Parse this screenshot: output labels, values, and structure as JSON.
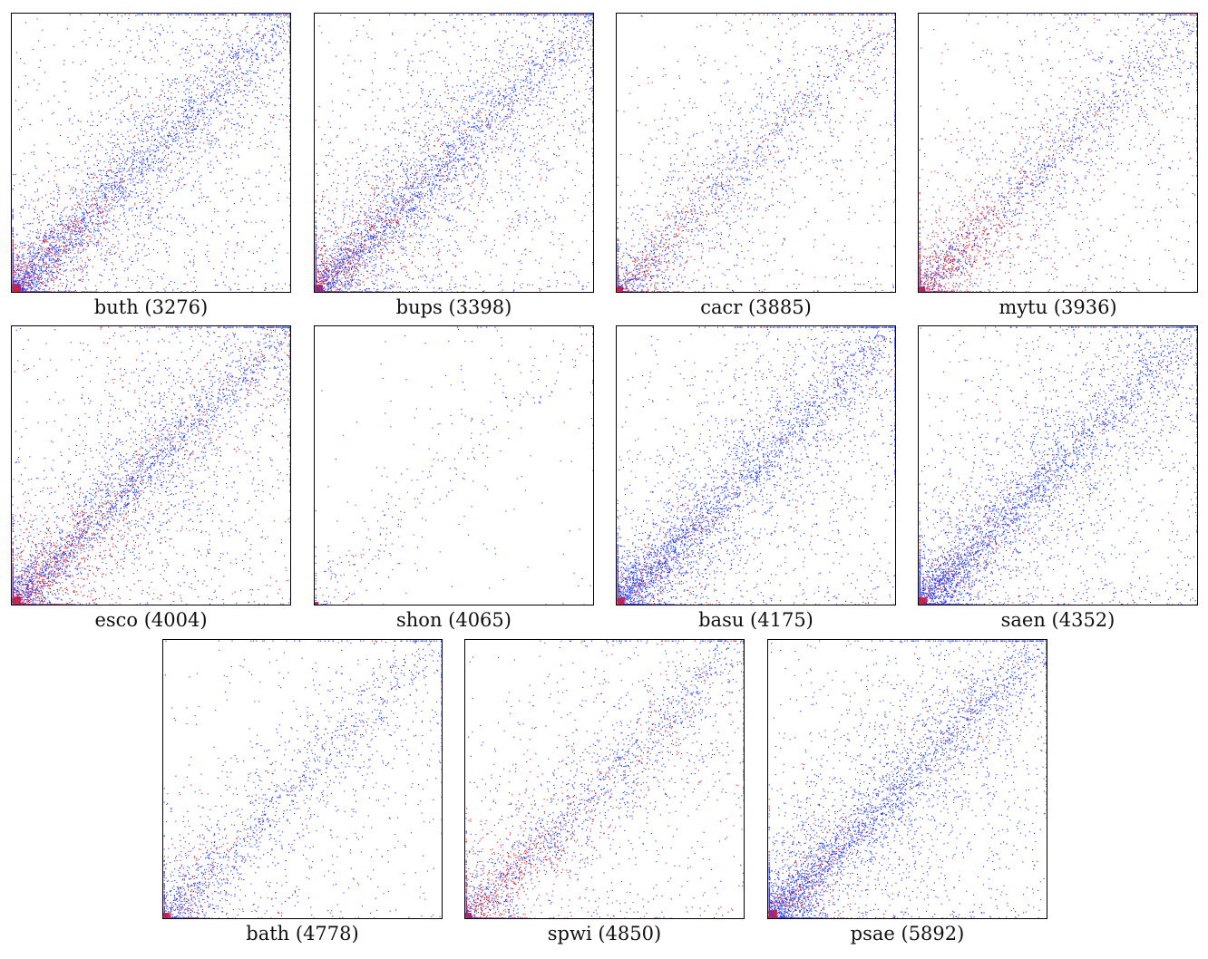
{
  "chart_data": [
    {
      "type": "scatter",
      "name": "buth",
      "count": 3276,
      "caption": "buth (3276)",
      "density": 1.0,
      "concentration": 0.55,
      "red_fraction": 0.22,
      "xlim": [
        0,
        3276
      ],
      "ylim": [
        0,
        3276
      ],
      "series": [
        {
          "name": "blue",
          "color": "#1f3cff"
        },
        {
          "name": "red",
          "color": "#e8202a"
        }
      ]
    },
    {
      "type": "scatter",
      "name": "bups",
      "count": 3398,
      "caption": "bups (3398)",
      "density": 1.0,
      "concentration": 0.5,
      "red_fraction": 0.22,
      "xlim": [
        0,
        3398
      ],
      "ylim": [
        0,
        3398
      ],
      "series": [
        {
          "name": "blue",
          "color": "#1f3cff"
        },
        {
          "name": "red",
          "color": "#e8202a"
        }
      ]
    },
    {
      "type": "scatter",
      "name": "cacr",
      "count": 3885,
      "caption": "cacr (3885)",
      "density": 0.5,
      "concentration": 0.5,
      "red_fraction": 0.3,
      "xlim": [
        0,
        3885
      ],
      "ylim": [
        0,
        3885
      ],
      "series": [
        {
          "name": "blue",
          "color": "#1f3cff"
        },
        {
          "name": "red",
          "color": "#e8202a"
        }
      ]
    },
    {
      "type": "scatter",
      "name": "mytu",
      "count": 3936,
      "caption": "mytu (3936)",
      "density": 0.6,
      "concentration": 0.5,
      "red_fraction": 0.38,
      "xlim": [
        0,
        3936
      ],
      "ylim": [
        0,
        3936
      ],
      "series": [
        {
          "name": "blue",
          "color": "#1f3cff"
        },
        {
          "name": "red",
          "color": "#e8202a"
        }
      ]
    },
    {
      "type": "scatter",
      "name": "esco",
      "count": 4004,
      "caption": "esco (4004)",
      "density": 1.0,
      "concentration": 0.55,
      "red_fraction": 0.3,
      "xlim": [
        0,
        4004
      ],
      "ylim": [
        0,
        4004
      ],
      "series": [
        {
          "name": "blue",
          "color": "#1f3cff"
        },
        {
          "name": "red",
          "color": "#e8202a"
        }
      ]
    },
    {
      "type": "scatter",
      "name": "shon",
      "count": 4065,
      "caption": "shon (4065)",
      "density": 0.08,
      "concentration": 0.2,
      "red_fraction": 0.15,
      "xlim": [
        0,
        4065
      ],
      "ylim": [
        0,
        4065
      ],
      "series": [
        {
          "name": "blue",
          "color": "#1f3cff"
        },
        {
          "name": "red",
          "color": "#e8202a"
        }
      ]
    },
    {
      "type": "scatter",
      "name": "basu",
      "count": 4175,
      "caption": "basu (4175)",
      "density": 0.95,
      "concentration": 0.55,
      "red_fraction": 0.12,
      "xlim": [
        0,
        4175
      ],
      "ylim": [
        0,
        4175
      ],
      "series": [
        {
          "name": "blue",
          "color": "#1f3cff"
        },
        {
          "name": "red",
          "color": "#e8202a"
        }
      ]
    },
    {
      "type": "scatter",
      "name": "saen",
      "count": 4352,
      "caption": "saen (4352)",
      "density": 0.95,
      "concentration": 0.55,
      "red_fraction": 0.12,
      "xlim": [
        0,
        4352
      ],
      "ylim": [
        0,
        4352
      ],
      "series": [
        {
          "name": "blue",
          "color": "#1f3cff"
        },
        {
          "name": "red",
          "color": "#e8202a"
        }
      ]
    },
    {
      "type": "scatter",
      "name": "bath",
      "count": 4778,
      "caption": "bath (4778)",
      "density": 0.45,
      "concentration": 0.6,
      "red_fraction": 0.15,
      "xlim": [
        0,
        4778
      ],
      "ylim": [
        0,
        4778
      ],
      "series": [
        {
          "name": "blue",
          "color": "#1f3cff"
        },
        {
          "name": "red",
          "color": "#e8202a"
        }
      ]
    },
    {
      "type": "scatter",
      "name": "spwi",
      "count": 4850,
      "caption": "spwi (4850)",
      "density": 0.6,
      "concentration": 0.5,
      "red_fraction": 0.35,
      "xlim": [
        0,
        4850
      ],
      "ylim": [
        0,
        4850
      ],
      "series": [
        {
          "name": "blue",
          "color": "#1f3cff"
        },
        {
          "name": "red",
          "color": "#e8202a"
        }
      ]
    },
    {
      "type": "scatter",
      "name": "psae",
      "count": 5892,
      "caption": "psae (5892)",
      "density": 1.0,
      "concentration": 0.55,
      "red_fraction": 0.12,
      "xlim": [
        0,
        5892
      ],
      "ylim": [
        0,
        5892
      ],
      "series": [
        {
          "name": "blue",
          "color": "#1f3cff"
        },
        {
          "name": "red",
          "color": "#e8202a"
        }
      ]
    }
  ]
}
